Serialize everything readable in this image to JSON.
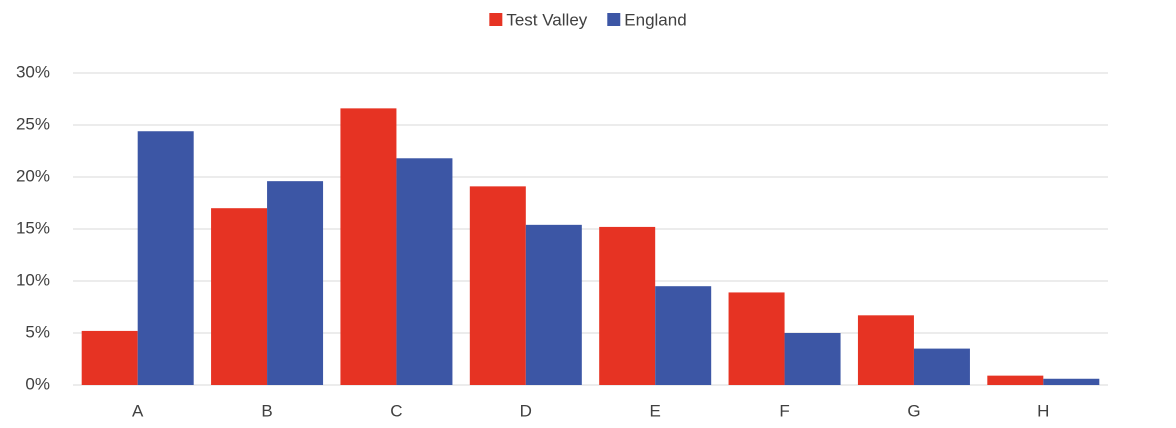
{
  "chart_data": {
    "type": "bar",
    "categories": [
      "A",
      "B",
      "C",
      "D",
      "E",
      "F",
      "G",
      "H"
    ],
    "series": [
      {
        "name": "Test Valley",
        "color": "#e63323",
        "values": [
          5.2,
          17.0,
          26.6,
          19.1,
          15.2,
          8.9,
          6.7,
          0.9
        ]
      },
      {
        "name": "England",
        "color": "#3c56a5",
        "values": [
          24.4,
          19.6,
          21.8,
          15.4,
          9.5,
          5.0,
          3.5,
          0.6
        ]
      }
    ],
    "ylim": [
      0,
      30
    ],
    "yticks": [
      {
        "value": 0,
        "label": "0%"
      },
      {
        "value": 5,
        "label": "5%"
      },
      {
        "value": 10,
        "label": "10%"
      },
      {
        "value": 15,
        "label": "15%"
      },
      {
        "value": 20,
        "label": "20%"
      },
      {
        "value": 25,
        "label": "25%"
      },
      {
        "value": 30,
        "label": "30%"
      }
    ],
    "grid": true,
    "legend": "top"
  }
}
